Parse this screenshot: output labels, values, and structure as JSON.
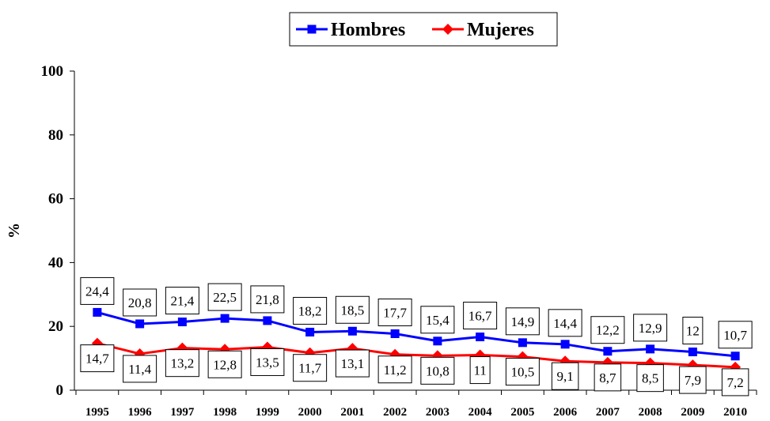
{
  "chart_data": {
    "type": "line",
    "title": "",
    "xlabel": "",
    "ylabel": "%",
    "ylim": [
      0,
      100
    ],
    "yticks": [
      0,
      20,
      40,
      60,
      80,
      100
    ],
    "grid": false,
    "legend_position": "top-center",
    "categories": [
      "1995",
      "1996",
      "1997",
      "1998",
      "1999",
      "2000",
      "2001",
      "2002",
      "2003",
      "2004",
      "2005",
      "2006",
      "2007",
      "2008",
      "2009",
      "2010"
    ],
    "series": [
      {
        "name": "Hombres",
        "color": "#0000ff",
        "marker": "square",
        "label_position": "above",
        "values": [
          24.4,
          20.8,
          21.4,
          22.5,
          21.8,
          18.2,
          18.5,
          17.7,
          15.4,
          16.7,
          14.9,
          14.4,
          12.2,
          12.9,
          12,
          10.7
        ],
        "labels": [
          "24,4",
          "20,8",
          "21,4",
          "22,5",
          "21,8",
          "18,2",
          "18,5",
          "17,7",
          "15,4",
          "16,7",
          "14,9",
          "14,4",
          "12,2",
          "12,9",
          "12",
          "10,7"
        ]
      },
      {
        "name": "Mujeres",
        "color": "#ff0000",
        "marker": "diamond",
        "label_position": "below",
        "values": [
          14.7,
          11.4,
          13.2,
          12.8,
          13.5,
          11.7,
          13.1,
          11.2,
          10.8,
          11,
          10.5,
          9.1,
          8.7,
          8.5,
          7.9,
          7.2
        ],
        "labels": [
          "14,7",
          "11,4",
          "13,2",
          "12,8",
          "13,5",
          "11,7",
          "13,1",
          "11,2",
          "10,8",
          "11",
          "10,5",
          "9,1",
          "8,7",
          "8,5",
          "7,9",
          "7,2"
        ]
      }
    ]
  }
}
